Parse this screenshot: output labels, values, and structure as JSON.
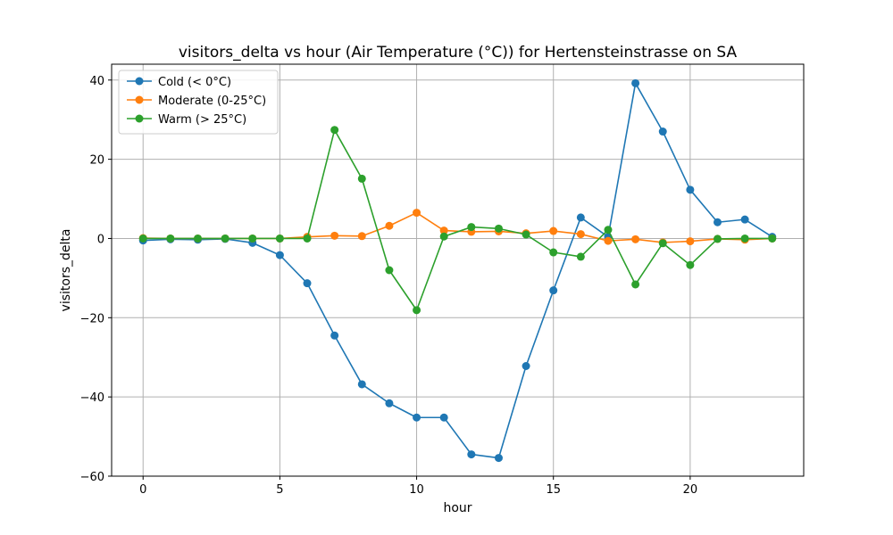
{
  "chart_data": {
    "type": "line",
    "title": "visitors_delta vs hour (Air Temperature (°C)) for Hertensteinstrasse on SA",
    "xlabel": "hour",
    "ylabel": "visitors_delta",
    "xlim": [
      -1.15,
      24.15
    ],
    "ylim": [
      -60,
      44
    ],
    "xticks": [
      0,
      5,
      10,
      15,
      20
    ],
    "yticks": [
      -60,
      -40,
      -20,
      0,
      20,
      40
    ],
    "grid": true,
    "legend_position": "top-left",
    "x": [
      0,
      1,
      2,
      3,
      4,
      5,
      6,
      7,
      8,
      9,
      10,
      11,
      12,
      13,
      14,
      15,
      16,
      17,
      18,
      19,
      20,
      21,
      22,
      23
    ],
    "series": [
      {
        "name": "Cold (< 0°C)",
        "color": "#1f77b4",
        "values": [
          -0.5,
          -0.2,
          -0.3,
          -0.1,
          -1.1,
          -4.2,
          -11.3,
          -24.5,
          -36.8,
          -41.6,
          -45.2,
          -45.2,
          -54.5,
          -55.4,
          -32.2,
          -13.1,
          5.3,
          0.4,
          39.2,
          27.0,
          12.3,
          4.1,
          4.8,
          0.4
        ]
      },
      {
        "name": "Moderate (0-25°C)",
        "color": "#ff7f0e",
        "values": [
          0.1,
          0.0,
          0.0,
          0.0,
          0.0,
          0.0,
          0.4,
          0.7,
          0.6,
          3.2,
          6.5,
          2.0,
          1.7,
          1.8,
          1.3,
          1.9,
          1.1,
          -0.6,
          -0.2,
          -1.0,
          -0.7,
          -0.1,
          -0.3,
          0.0
        ]
      },
      {
        "name": "Warm (> 25°C)",
        "color": "#2ca02c",
        "values": [
          0.0,
          0.0,
          0.0,
          0.0,
          0.0,
          0.0,
          0.0,
          27.4,
          15.1,
          -8.0,
          -18.1,
          0.5,
          2.9,
          2.5,
          1.0,
          -3.5,
          -4.6,
          2.2,
          -11.6,
          -1.2,
          -6.7,
          -0.1,
          0.0,
          0.0
        ]
      }
    ]
  }
}
